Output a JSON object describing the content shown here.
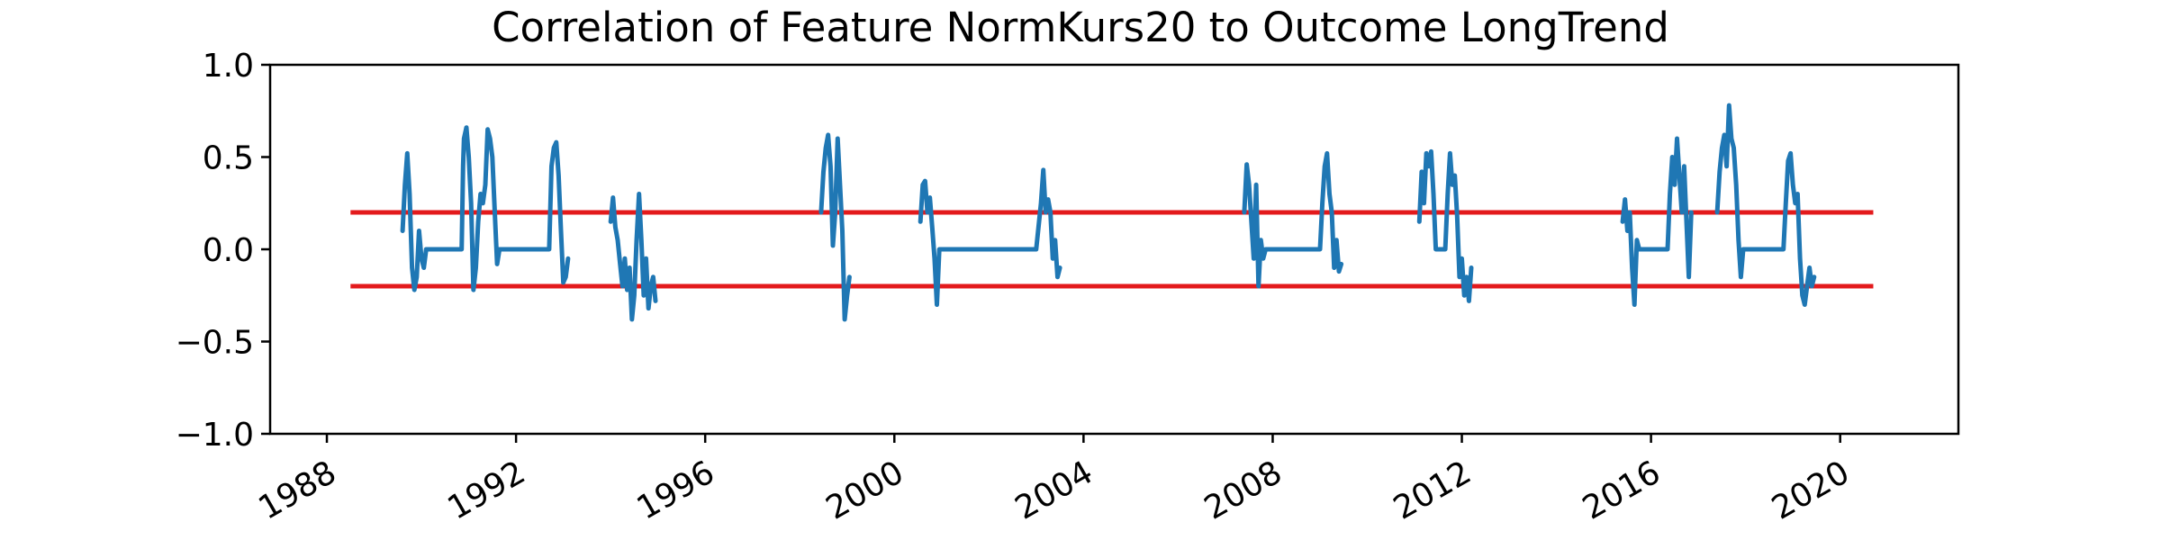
{
  "chart_data": {
    "type": "line",
    "title": "Correlation of Feature NormKurs20 to Outcome LongTrend",
    "xlabel": "",
    "ylabel": "",
    "xlim": [
      1986.8,
      2022.5
    ],
    "ylim": [
      -1.0,
      1.0
    ],
    "x_ticks": [
      "1988",
      "1992",
      "1996",
      "2000",
      "2004",
      "2008",
      "2012",
      "2016",
      "2020"
    ],
    "y_ticks": [
      "1.0",
      "0.5",
      "0.0",
      "−0.5",
      "−1.0"
    ],
    "grid": false,
    "legend": "none",
    "colors": {
      "series": "#1f77b4",
      "threshold": "#e31a1c",
      "axes": "#000000"
    },
    "thresholds": [
      {
        "value": 0.2,
        "x_range": [
          1988.5,
          2020.7
        ]
      },
      {
        "value": -0.2,
        "x_range": [
          1988.5,
          2020.7
        ]
      }
    ],
    "series": [
      {
        "segments": [
          {
            "x": [
              1989.6,
              1989.65,
              1989.7,
              1989.75,
              1989.8,
              1989.85,
              1989.9,
              1989.95,
              1990.0,
              1990.05,
              1990.1,
              1990.15,
              1990.2,
              1990.3,
              1990.5,
              1990.7,
              1990.85,
              1990.88,
              1990.9,
              1990.95,
              1991.0,
              1991.05,
              1991.1,
              1991.15,
              1991.2,
              1991.25,
              1991.3,
              1991.35,
              1991.4,
              1991.45,
              1991.5,
              1991.55,
              1991.6,
              1991.65,
              1991.7,
              1991.75,
              1991.8,
              1991.85,
              1991.9,
              1991.95,
              1992.0,
              1992.3,
              1992.6,
              1992.7,
              1992.75,
              1992.8,
              1992.85,
              1992.9,
              1992.95,
              1993.0,
              1993.05,
              1993.1
            ],
            "y": [
              0.1,
              0.35,
              0.52,
              0.3,
              -0.1,
              -0.22,
              -0.15,
              0.1,
              -0.05,
              -0.1,
              0.0,
              0.0,
              0.0,
              0.0,
              0.0,
              0.0,
              0.0,
              0.45,
              0.6,
              0.66,
              0.5,
              0.25,
              -0.22,
              -0.1,
              0.15,
              0.3,
              0.25,
              0.35,
              0.65,
              0.6,
              0.5,
              0.2,
              -0.08,
              0.0,
              0.0,
              0.0,
              0.0,
              0.0,
              0.0,
              0.0,
              0.0,
              0.0,
              0.0,
              0.0,
              0.45,
              0.55,
              0.58,
              0.4,
              0.1,
              -0.18,
              -0.15,
              -0.05
            ]
          },
          {
            "x": [
              1994.0,
              1994.05,
              1994.1,
              1994.15,
              1994.2,
              1994.25,
              1994.3,
              1994.35,
              1994.4,
              1994.45,
              1994.5,
              1994.55,
              1994.6,
              1994.65,
              1994.7,
              1994.75,
              1994.8,
              1994.85,
              1994.9,
              1994.95
            ],
            "y": [
              0.15,
              0.28,
              0.12,
              0.05,
              -0.08,
              -0.2,
              -0.05,
              -0.22,
              -0.1,
              -0.38,
              -0.25,
              0.05,
              0.3,
              0.05,
              -0.25,
              -0.05,
              -0.32,
              -0.2,
              -0.15,
              -0.28
            ]
          },
          {
            "x": [
              1998.45,
              1998.5,
              1998.55,
              1998.6,
              1998.65,
              1998.7,
              1998.75,
              1998.8,
              1998.85,
              1998.9,
              1998.95,
              1999.0,
              1999.05
            ],
            "y": [
              0.2,
              0.42,
              0.55,
              0.62,
              0.45,
              0.02,
              0.2,
              0.6,
              0.35,
              0.1,
              -0.38,
              -0.25,
              -0.15
            ]
          },
          {
            "x": [
              2000.55,
              2000.6,
              2000.65,
              2000.7,
              2000.75,
              2000.8,
              2000.85,
              2000.9,
              2000.95,
              2001.0,
              2001.05,
              2001.1,
              2001.5,
              2002.0,
              2002.5,
              2003.0,
              2003.1,
              2003.15,
              2003.2,
              2003.25,
              2003.3,
              2003.35,
              2003.4,
              2003.45,
              2003.5
            ],
            "y": [
              0.15,
              0.35,
              0.37,
              0.2,
              0.28,
              0.12,
              -0.05,
              -0.3,
              0.0,
              0.0,
              0.0,
              0.0,
              0.0,
              0.0,
              0.0,
              0.0,
              0.25,
              0.43,
              0.2,
              0.27,
              0.2,
              -0.05,
              0.05,
              -0.15,
              -0.1
            ]
          },
          {
            "x": [
              2007.4,
              2007.45,
              2007.5,
              2007.55,
              2007.6,
              2007.65,
              2007.7,
              2007.75,
              2007.8,
              2007.85,
              2008.0,
              2008.5,
              2009.0,
              2009.05,
              2009.1,
              2009.15,
              2009.2,
              2009.25,
              2009.3,
              2009.35,
              2009.4,
              2009.45
            ],
            "y": [
              0.2,
              0.46,
              0.35,
              0.15,
              -0.05,
              0.35,
              -0.2,
              0.05,
              -0.05,
              0.0,
              0.0,
              0.0,
              0.0,
              0.25,
              0.45,
              0.52,
              0.3,
              0.2,
              -0.1,
              0.05,
              -0.12,
              -0.08
            ]
          },
          {
            "x": [
              2011.1,
              2011.15,
              2011.2,
              2011.25,
              2011.3,
              2011.35,
              2011.4,
              2011.45,
              2011.5,
              2011.55,
              2011.6,
              2011.65,
              2011.7,
              2011.75,
              2011.8,
              2011.85,
              2011.9,
              2011.95,
              2012.0,
              2012.05,
              2012.1,
              2012.15,
              2012.2
            ],
            "y": [
              0.15,
              0.42,
              0.25,
              0.52,
              0.45,
              0.53,
              0.3,
              0.0,
              0.0,
              0.0,
              0.0,
              0.0,
              0.3,
              0.52,
              0.35,
              0.4,
              0.18,
              -0.15,
              -0.05,
              -0.25,
              -0.15,
              -0.28,
              -0.1
            ]
          },
          {
            "x": [
              2015.4,
              2015.45,
              2015.5,
              2015.55,
              2015.6,
              2015.65,
              2015.7,
              2015.75,
              2015.8,
              2015.85,
              2015.9,
              2016.0,
              2016.2,
              2016.35,
              2016.4,
              2016.45,
              2016.5,
              2016.55,
              2016.6,
              2016.65,
              2016.7,
              2016.75,
              2016.8,
              2016.85
            ],
            "y": [
              0.15,
              0.27,
              0.1,
              0.2,
              -0.1,
              -0.3,
              0.05,
              0.0,
              0.0,
              0.0,
              0.0,
              0.0,
              0.0,
              0.0,
              0.3,
              0.5,
              0.35,
              0.6,
              0.4,
              0.2,
              0.45,
              0.15,
              -0.15,
              0.2
            ]
          },
          {
            "x": [
              2017.4,
              2017.45,
              2017.5,
              2017.55,
              2017.6,
              2017.65,
              2017.7,
              2017.75,
              2017.8,
              2017.85,
              2017.9,
              2017.95,
              2018.0,
              2018.05,
              2018.1,
              2018.15,
              2018.5,
              2018.8,
              2018.85,
              2018.9,
              2018.95,
              2019.0,
              2019.05,
              2019.1,
              2019.15,
              2019.2,
              2019.25,
              2019.3,
              2019.35,
              2019.4,
              2019.45
            ],
            "y": [
              0.2,
              0.42,
              0.55,
              0.62,
              0.45,
              0.78,
              0.6,
              0.55,
              0.35,
              0.05,
              -0.15,
              0.0,
              0.0,
              0.0,
              0.0,
              0.0,
              0.0,
              0.0,
              0.25,
              0.48,
              0.52,
              0.35,
              0.25,
              0.3,
              -0.05,
              -0.25,
              -0.3,
              -0.2,
              -0.1,
              -0.2,
              -0.15
            ]
          }
        ]
      }
    ]
  }
}
